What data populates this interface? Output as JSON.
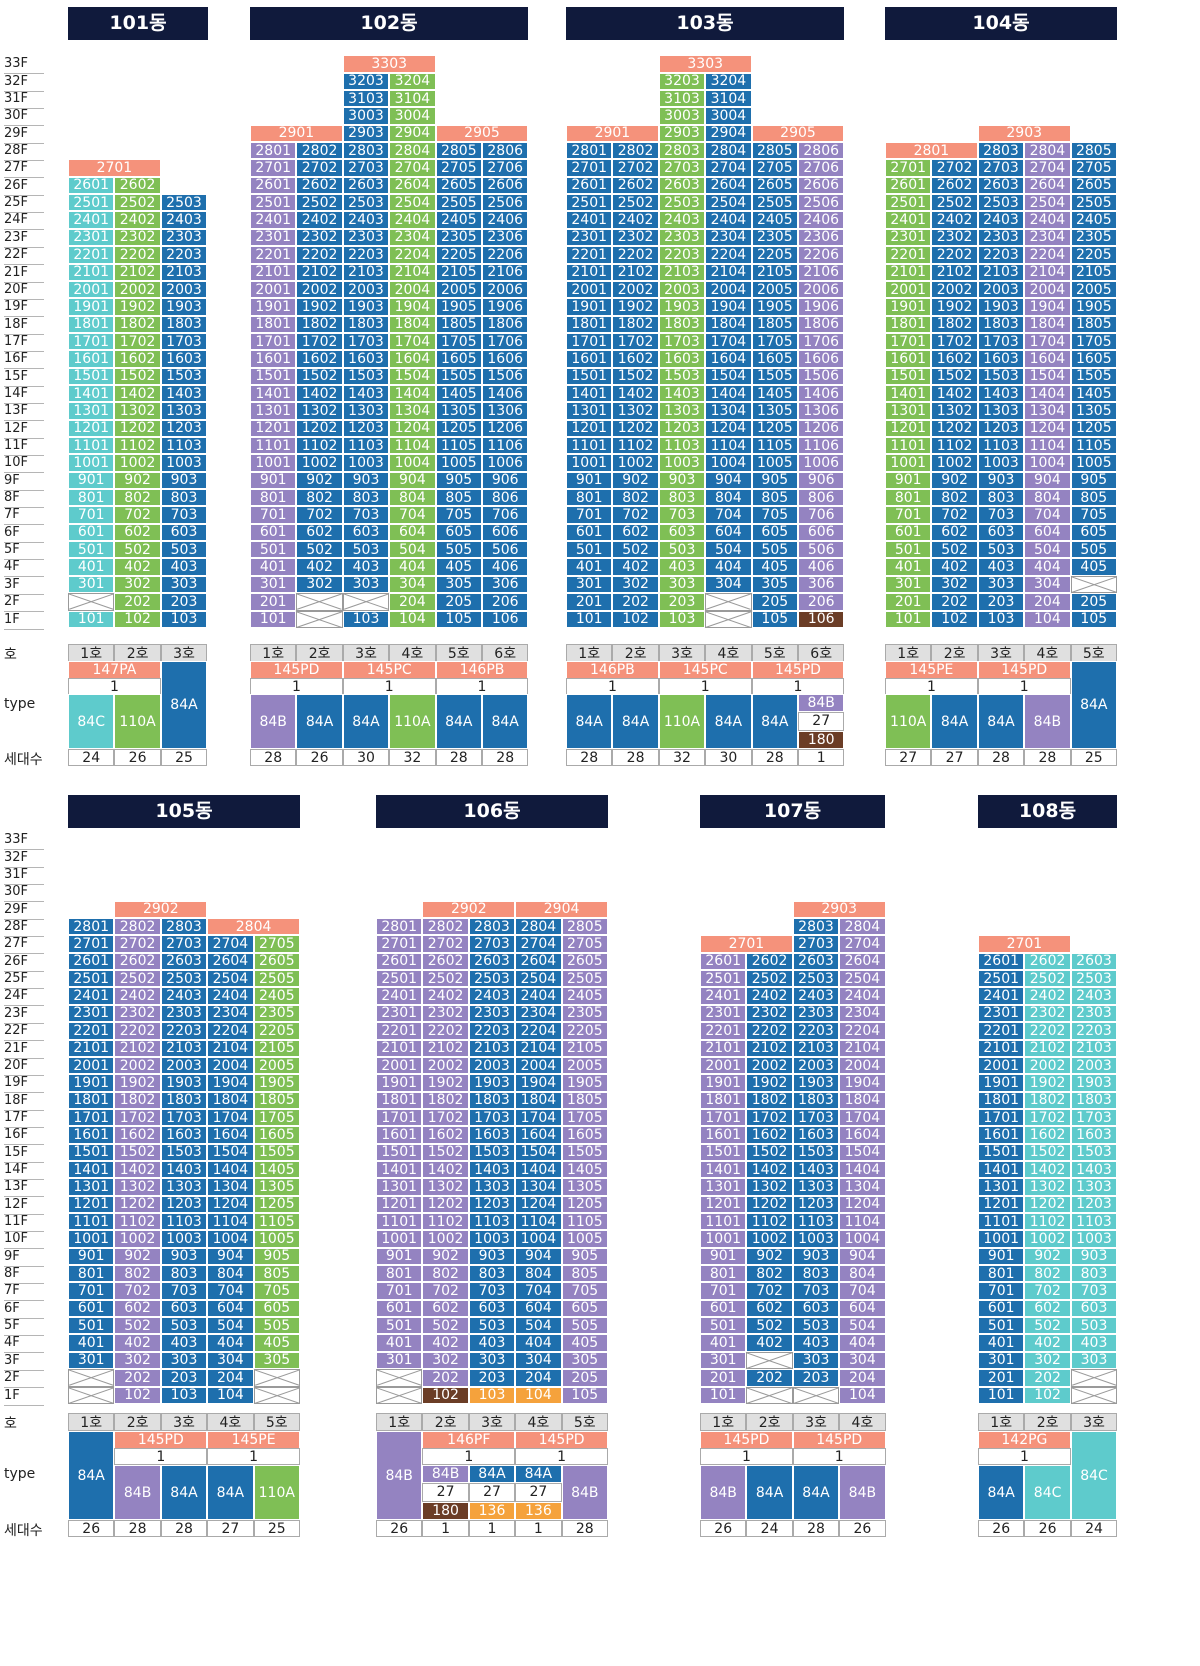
{
  "row_labels": {
    "ho": "호",
    "type": "type",
    "count": "세대수"
  },
  "sections": [
    {
      "floor_labels": [
        "33F",
        "32F",
        "31F",
        "30F",
        "29F",
        "28F",
        "27F",
        "26F",
        "25F",
        "24F",
        "23F",
        "22F",
        "21F",
        "20F",
        "19F",
        "18F",
        "17F",
        "16F",
        "15F",
        "14F",
        "13F",
        "12F",
        "11F",
        "10F",
        "9F",
        "8F",
        "7F",
        "6F",
        "5F",
        "4F",
        "3F",
        "2F",
        "1F"
      ]
    },
    {
      "floor_labels": [
        "33F",
        "32F",
        "31F",
        "30F",
        "29F",
        "28F",
        "27F",
        "26F",
        "25F",
        "24F",
        "23F",
        "22F",
        "21F",
        "20F",
        "19F",
        "18F",
        "17F",
        "16F",
        "15F",
        "14F",
        "13F",
        "12F",
        "11F",
        "10F",
        "9F",
        "8F",
        "7F",
        "6F",
        "5F",
        "4F",
        "3F",
        "2F",
        "1F"
      ]
    }
  ],
  "colors": {
    "blue": "#1e6fad",
    "purple": "#9483c1",
    "green": "#7fbf55",
    "teal": "#5ecbcc",
    "salmon": "#f5927b",
    "orange": "#f5a23c",
    "brown": "#6b3d26",
    "header": "#101a3c"
  },
  "buildings": [
    {
      "name": "101동",
      "section": 0,
      "cols": 3,
      "col_colors": [
        "teal",
        "green",
        "blue"
      ],
      "tops": [
        26,
        26,
        25
      ],
      "penthouses": [
        {
          "label": "2701",
          "col_start": 0,
          "col_span": 2,
          "floor": 27
        }
      ],
      "empty": [
        [
          0,
          2
        ]
      ],
      "ho": [
        "1호",
        "2호",
        "3호"
      ],
      "types": [
        {
          "code": "147PA",
          "span": 2,
          "sub": "1"
        },
        {
          "code": "",
          "span": 1,
          "sub": ""
        }
      ],
      "unit_types": [
        "84C",
        "110A",
        "84A"
      ],
      "unit_colors": [
        "teal",
        "green",
        "blue"
      ],
      "counts": [
        "24",
        "26",
        "25"
      ]
    },
    {
      "name": "102동",
      "section": 0,
      "cols": 6,
      "col_colors": [
        "purple",
        "blue",
        "blue",
        "green",
        "blue",
        "blue"
      ],
      "tops": [
        28,
        28,
        32,
        32,
        28,
        28
      ],
      "penthouses": [
        {
          "label": "2901",
          "col_start": 0,
          "col_span": 2,
          "floor": 29
        },
        {
          "label": "3303",
          "col_start": 2,
          "col_span": 2,
          "floor": 33
        },
        {
          "label": "2905",
          "col_start": 4,
          "col_span": 2,
          "floor": 29
        }
      ],
      "empty": [
        [
          1,
          1
        ],
        [
          1,
          2
        ],
        [
          2,
          2
        ]
      ],
      "ho": [
        "1호",
        "2호",
        "3호",
        "4호",
        "5호",
        "6호"
      ],
      "types": [
        {
          "code": "145PD",
          "span": 2,
          "sub": "1"
        },
        {
          "code": "145PC",
          "span": 2,
          "sub": "1"
        },
        {
          "code": "146PB",
          "span": 2,
          "sub": "1"
        }
      ],
      "unit_types": [
        "84B",
        "84A",
        "84A",
        "110A",
        "84A",
        "84A"
      ],
      "unit_colors": [
        "purple",
        "blue",
        "blue",
        "green",
        "blue",
        "blue"
      ],
      "counts": [
        "28",
        "26",
        "30",
        "32",
        "28",
        "28"
      ]
    },
    {
      "name": "103동",
      "section": 0,
      "cols": 6,
      "col_colors": [
        "blue",
        "blue",
        "green",
        "blue",
        "blue",
        "purple"
      ],
      "tops": [
        28,
        28,
        32,
        32,
        28,
        28
      ],
      "penthouses": [
        {
          "label": "2901",
          "col_start": 0,
          "col_span": 2,
          "floor": 29
        },
        {
          "label": "3303",
          "col_start": 2,
          "col_span": 2,
          "floor": 33
        },
        {
          "label": "2905",
          "col_start": 4,
          "col_span": 2,
          "floor": 29
        }
      ],
      "empty": [
        [
          3,
          2
        ],
        [
          3,
          1
        ]
      ],
      "special": [
        {
          "col": 5,
          "floor": 1,
          "color": "brown"
        }
      ],
      "ho": [
        "1호",
        "2호",
        "3호",
        "4호",
        "5호",
        "6호"
      ],
      "types": [
        {
          "code": "146PB",
          "span": 2,
          "sub": "1"
        },
        {
          "code": "145PC",
          "span": 2,
          "sub": "1"
        },
        {
          "code": "145PD",
          "span": 2,
          "sub": "1"
        }
      ],
      "unit_types": [
        "84A",
        "84A",
        "110A",
        "84A",
        "84A",
        "84B"
      ],
      "unit_colors": [
        "blue",
        "blue",
        "green",
        "blue",
        "blue",
        "purple"
      ],
      "split_last": {
        "extra": "27",
        "extra2": "180"
      },
      "counts": [
        "28",
        "28",
        "32",
        "30",
        "28",
        "1"
      ]
    },
    {
      "name": "104동",
      "section": 0,
      "cols": 5,
      "col_colors": [
        "green",
        "blue",
        "blue",
        "purple",
        "blue"
      ],
      "tops": [
        28,
        28,
        29,
        29,
        28
      ],
      "penthouses": [
        {
          "label": "2801",
          "col_start": 0,
          "col_span": 2,
          "floor": 28
        },
        {
          "label": "2903",
          "col_start": 2,
          "col_span": 2,
          "floor": 29
        }
      ],
      "empty": [
        [
          4,
          3
        ]
      ],
      "ho": [
        "1호",
        "2호",
        "3호",
        "4호",
        "5호"
      ],
      "types": [
        {
          "code": "145PE",
          "span": 2,
          "sub": "1"
        },
        {
          "code": "145PD",
          "span": 2,
          "sub": "1"
        },
        {
          "code": "",
          "span": 1,
          "sub": ""
        }
      ],
      "unit_types": [
        "110A",
        "84A",
        "84A",
        "84B",
        "84A"
      ],
      "unit_colors": [
        "green",
        "blue",
        "blue",
        "purple",
        "blue"
      ],
      "counts": [
        "27",
        "27",
        "28",
        "28",
        "25"
      ]
    },
    {
      "name": "105동",
      "section": 1,
      "cols": 5,
      "col_colors": [
        "blue",
        "purple",
        "blue",
        "blue",
        "green"
      ],
      "tops": [
        28,
        28,
        28,
        27,
        27
      ],
      "penthouses": [
        {
          "label": "2902",
          "col_start": 1,
          "col_span": 2,
          "floor": 29
        },
        {
          "label": "2804",
          "col_start": 3,
          "col_span": 2,
          "floor": 28
        }
      ],
      "empty": [
        [
          0,
          2
        ],
        [
          0,
          1
        ],
        [
          4,
          2
        ],
        [
          4,
          1
        ]
      ],
      "ho": [
        "1호",
        "2호",
        "3호",
        "4호",
        "5호"
      ],
      "types": [
        {
          "code": "",
          "span": 1,
          "sub": ""
        },
        {
          "code": "145PD",
          "span": 2,
          "sub": "1"
        },
        {
          "code": "145PE",
          "span": 2,
          "sub": "1"
        }
      ],
      "unit_types": [
        "84A",
        "84B",
        "84A",
        "84A",
        "110A"
      ],
      "unit_colors": [
        "blue",
        "purple",
        "blue",
        "blue",
        "green"
      ],
      "counts": [
        "26",
        "28",
        "28",
        "27",
        "25"
      ]
    },
    {
      "name": "106동",
      "section": 1,
      "cols": 5,
      "col_colors": [
        "purple",
        "purple",
        "blue",
        "blue",
        "purple"
      ],
      "tops": [
        28,
        28,
        28,
        28,
        28
      ],
      "penthouses": [
        {
          "label": "2902",
          "col_start": 1,
          "col_span": 2,
          "floor": 29
        },
        {
          "label": "2904",
          "col_start": 3,
          "col_span": 2,
          "floor": 29
        }
      ],
      "empty": [
        [
          0,
          2
        ],
        [
          0,
          1
        ]
      ],
      "special": [
        {
          "col": 1,
          "floor": 1,
          "color": "brown"
        },
        {
          "col": 2,
          "floor": 1,
          "color": "orange"
        },
        {
          "col": 3,
          "floor": 1,
          "color": "orange"
        }
      ],
      "ho": [
        "1호",
        "2호",
        "3호",
        "4호",
        "5호"
      ],
      "types": [
        {
          "code": "",
          "span": 1,
          "sub": ""
        },
        {
          "code": "146PF",
          "span": 2,
          "sub": "1"
        },
        {
          "code": "145PD",
          "span": 2,
          "sub": "1"
        }
      ],
      "unit_types": [
        "84B",
        "84B",
        "84A",
        "84A",
        "84B"
      ],
      "unit_colors": [
        "purple",
        "purple",
        "blue",
        "blue",
        "purple"
      ],
      "split_cols": {
        "1": {
          "top": "84B",
          "mid": "27",
          "bot": "180",
          "bot_color": "brown",
          "top_color": "purple"
        },
        "2": {
          "top": "84A",
          "mid": "27",
          "bot": "136",
          "bot_color": "orange",
          "top_color": "blue"
        },
        "3": {
          "top": "84A",
          "mid": "27",
          "bot": "136",
          "bot_color": "orange",
          "top_color": "blue"
        }
      },
      "counts": [
        "26",
        "1",
        "1",
        "1",
        "28"
      ]
    },
    {
      "name": "107동",
      "section": 1,
      "cols": 4,
      "col_colors": [
        "purple",
        "blue",
        "blue",
        "purple"
      ],
      "tops": [
        26,
        26,
        28,
        28
      ],
      "penthouses": [
        {
          "label": "2701",
          "col_start": 0,
          "col_span": 2,
          "floor": 27
        },
        {
          "label": "2903",
          "col_start": 2,
          "col_span": 2,
          "floor": 29
        }
      ],
      "empty": [
        [
          1,
          1
        ],
        [
          1,
          3
        ],
        [
          2,
          1
        ]
      ],
      "ho": [
        "1호",
        "2호",
        "3호",
        "4호"
      ],
      "types": [
        {
          "code": "145PD",
          "span": 2,
          "sub": "1"
        },
        {
          "code": "145PD",
          "span": 2,
          "sub": "1"
        }
      ],
      "unit_types": [
        "84B",
        "84A",
        "84A",
        "84B"
      ],
      "unit_colors": [
        "purple",
        "blue",
        "blue",
        "purple"
      ],
      "counts": [
        "26",
        "24",
        "28",
        "26"
      ]
    },
    {
      "name": "108동",
      "section": 1,
      "cols": 3,
      "col_colors": [
        "blue",
        "teal",
        "teal"
      ],
      "tops": [
        26,
        26,
        26
      ],
      "penthouses": [
        {
          "label": "2701",
          "col_start": 0,
          "col_span": 2,
          "floor": 27
        }
      ],
      "empty": [
        [
          2,
          2
        ],
        [
          2,
          1
        ]
      ],
      "ho": [
        "1호",
        "2호",
        "3호"
      ],
      "types": [
        {
          "code": "142PG",
          "span": 2,
          "sub": "1"
        },
        {
          "code": "",
          "span": 1,
          "sub": ""
        }
      ],
      "unit_types": [
        "84A",
        "84C",
        "84C"
      ],
      "unit_colors": [
        "blue",
        "teal",
        "teal"
      ],
      "counts": [
        "26",
        "26",
        "24"
      ]
    }
  ]
}
